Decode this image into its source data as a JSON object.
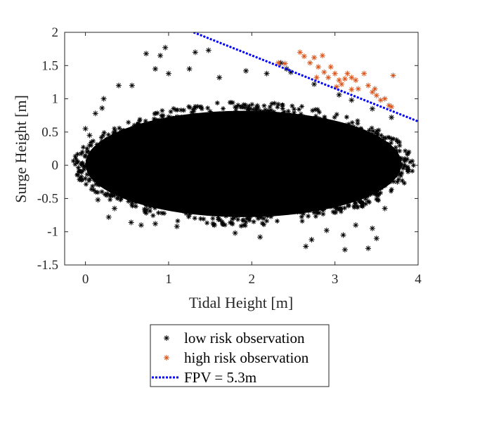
{
  "chart_data": {
    "type": "scatter",
    "xlabel": "Tidal Height [m]",
    "ylabel": "Surge Height [m]",
    "xlim": [
      -0.25,
      4
    ],
    "ylim": [
      -1.5,
      2
    ],
    "xticks": [
      "0",
      "1",
      "2",
      "3",
      "4"
    ],
    "yticks": [
      "-1.5",
      "-1",
      "-0.5",
      "0",
      "0.5",
      "1",
      "1.5",
      "2"
    ],
    "xtick_values": [
      0,
      1,
      2,
      3,
      4
    ],
    "ytick_values": [
      -1.5,
      -1,
      -0.5,
      0,
      0.5,
      1,
      1.5,
      2
    ],
    "grid": false,
    "legend_position": "below",
    "series": [
      {
        "name": "low risk observation",
        "marker": "asterisk",
        "color": "#000000",
        "shape": "dense elliptical cloud",
        "cloud_center": [
          1.9,
          0.02
        ],
        "cloud_x_extent": [
          0.0,
          3.8
        ],
        "cloud_y_extent": [
          -0.75,
          0.85
        ],
        "points": [
          [
            0.73,
            1.68
          ],
          [
            0.96,
            1.77
          ],
          [
            1.32,
            1.7
          ],
          [
            1.48,
            1.73
          ],
          [
            0.9,
            1.65
          ],
          [
            0.84,
            1.45
          ],
          [
            0.56,
            1.2
          ],
          [
            0.4,
            1.2
          ],
          [
            0.22,
            1.0
          ],
          [
            0.2,
            0.86
          ],
          [
            0.12,
            0.78
          ],
          [
            0.0,
            0.55
          ],
          [
            0.05,
            0.45
          ],
          [
            1.0,
            1.38
          ],
          [
            1.25,
            1.45
          ],
          [
            1.61,
            1.32
          ],
          [
            1.93,
            1.42
          ],
          [
            2.18,
            1.38
          ],
          [
            2.42,
            1.45
          ],
          [
            2.75,
            1.22
          ],
          [
            2.35,
            1.54
          ],
          [
            2.47,
            1.4
          ],
          [
            3.05,
            1.06
          ],
          [
            3.2,
            0.98
          ],
          [
            3.45,
            0.85
          ],
          [
            3.68,
            0.72
          ],
          [
            3.8,
            0.0
          ],
          [
            3.75,
            -0.25
          ],
          [
            3.6,
            -0.65
          ],
          [
            3.45,
            -0.95
          ],
          [
            3.5,
            -1.1
          ],
          [
            3.4,
            -1.25
          ],
          [
            3.12,
            -1.27
          ],
          [
            2.65,
            -1.22
          ],
          [
            2.72,
            -1.12
          ],
          [
            2.1,
            -1.08
          ],
          [
            1.8,
            -1.02
          ],
          [
            1.55,
            -0.9
          ],
          [
            1.1,
            -0.92
          ],
          [
            0.84,
            -0.88
          ],
          [
            0.67,
            -0.9
          ],
          [
            0.55,
            -0.86
          ],
          [
            0.35,
            -0.65
          ],
          [
            0.28,
            -0.78
          ],
          [
            0.15,
            -0.52
          ],
          [
            0.0,
            -0.2
          ],
          [
            0.05,
            0.3
          ],
          [
            3.1,
            -1.05
          ],
          [
            2.9,
            -0.98
          ],
          [
            3.25,
            -0.9
          ]
        ]
      },
      {
        "name": "high risk observation",
        "marker": "asterisk",
        "color": "#D95319",
        "points": [
          [
            2.32,
            1.54
          ],
          [
            2.4,
            1.53
          ],
          [
            2.58,
            1.7
          ],
          [
            2.63,
            1.64
          ],
          [
            2.7,
            1.54
          ],
          [
            2.75,
            1.62
          ],
          [
            2.85,
            1.65
          ],
          [
            2.8,
            1.48
          ],
          [
            2.87,
            1.4
          ],
          [
            2.92,
            1.32
          ],
          [
            2.95,
            1.48
          ],
          [
            3.0,
            1.38
          ],
          [
            3.05,
            1.28
          ],
          [
            3.08,
            1.22
          ],
          [
            3.12,
            1.3
          ],
          [
            3.15,
            1.38
          ],
          [
            3.2,
            1.32
          ],
          [
            3.25,
            1.28
          ],
          [
            3.28,
            1.15
          ],
          [
            3.35,
            1.38
          ],
          [
            3.4,
            1.2
          ],
          [
            3.45,
            1.1
          ],
          [
            3.48,
            1.15
          ],
          [
            3.5,
            1.05
          ],
          [
            3.55,
            0.98
          ],
          [
            3.6,
            1.0
          ],
          [
            3.65,
            0.9
          ],
          [
            3.7,
            1.35
          ],
          [
            3.68,
            0.88
          ],
          [
            3.2,
            1.14
          ],
          [
            2.78,
            1.32
          ],
          [
            3.02,
            1.18
          ]
        ]
      },
      {
        "name": "FPV = 5.3m",
        "type": "line",
        "style": "dotted",
        "color": "#0000FF",
        "x": [
          1.3,
          4.0
        ],
        "y": [
          2.0,
          0.66
        ]
      }
    ]
  }
}
